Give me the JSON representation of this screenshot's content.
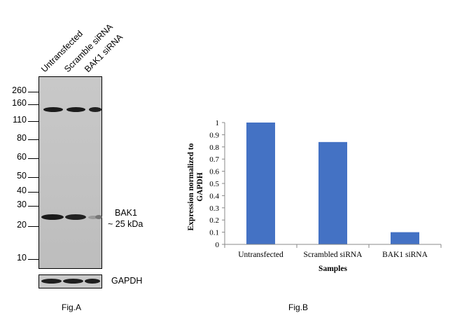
{
  "panel_a": {
    "lane_labels": [
      "Untransfected",
      "Scramble siRNA",
      "BAK1 siRNA"
    ],
    "mw_markers": [
      "260",
      "160",
      "110",
      "80",
      "60",
      "50",
      "40",
      "30",
      "20",
      "10"
    ],
    "band_label_line1": "BAK1",
    "band_label_line2": "~ 25 kDa",
    "loading_control_label": "GAPDH",
    "caption": "Fig.A",
    "colors": {
      "blot_bg": "#c6c6c6",
      "band": "#1a1a1a"
    }
  },
  "panel_b": {
    "caption": "Fig.B"
  },
  "chart_data": {
    "type": "bar",
    "categories": [
      "Untransfected",
      "Scrambled siRNA",
      "BAK1 siRNA"
    ],
    "values": [
      1.0,
      0.84,
      0.1
    ],
    "title": "",
    "xlabel": "Samples",
    "ylabel": "Expression normalized to GAPDH",
    "ylim": [
      0,
      1
    ],
    "yticks": [
      "0",
      "0.1",
      "0.2",
      "0.3",
      "0.4",
      "0.5",
      "0.6",
      "0.7",
      "0.8",
      "0.9",
      "1"
    ],
    "grid": false,
    "legend": "none",
    "bar_color": "#4472c4"
  }
}
